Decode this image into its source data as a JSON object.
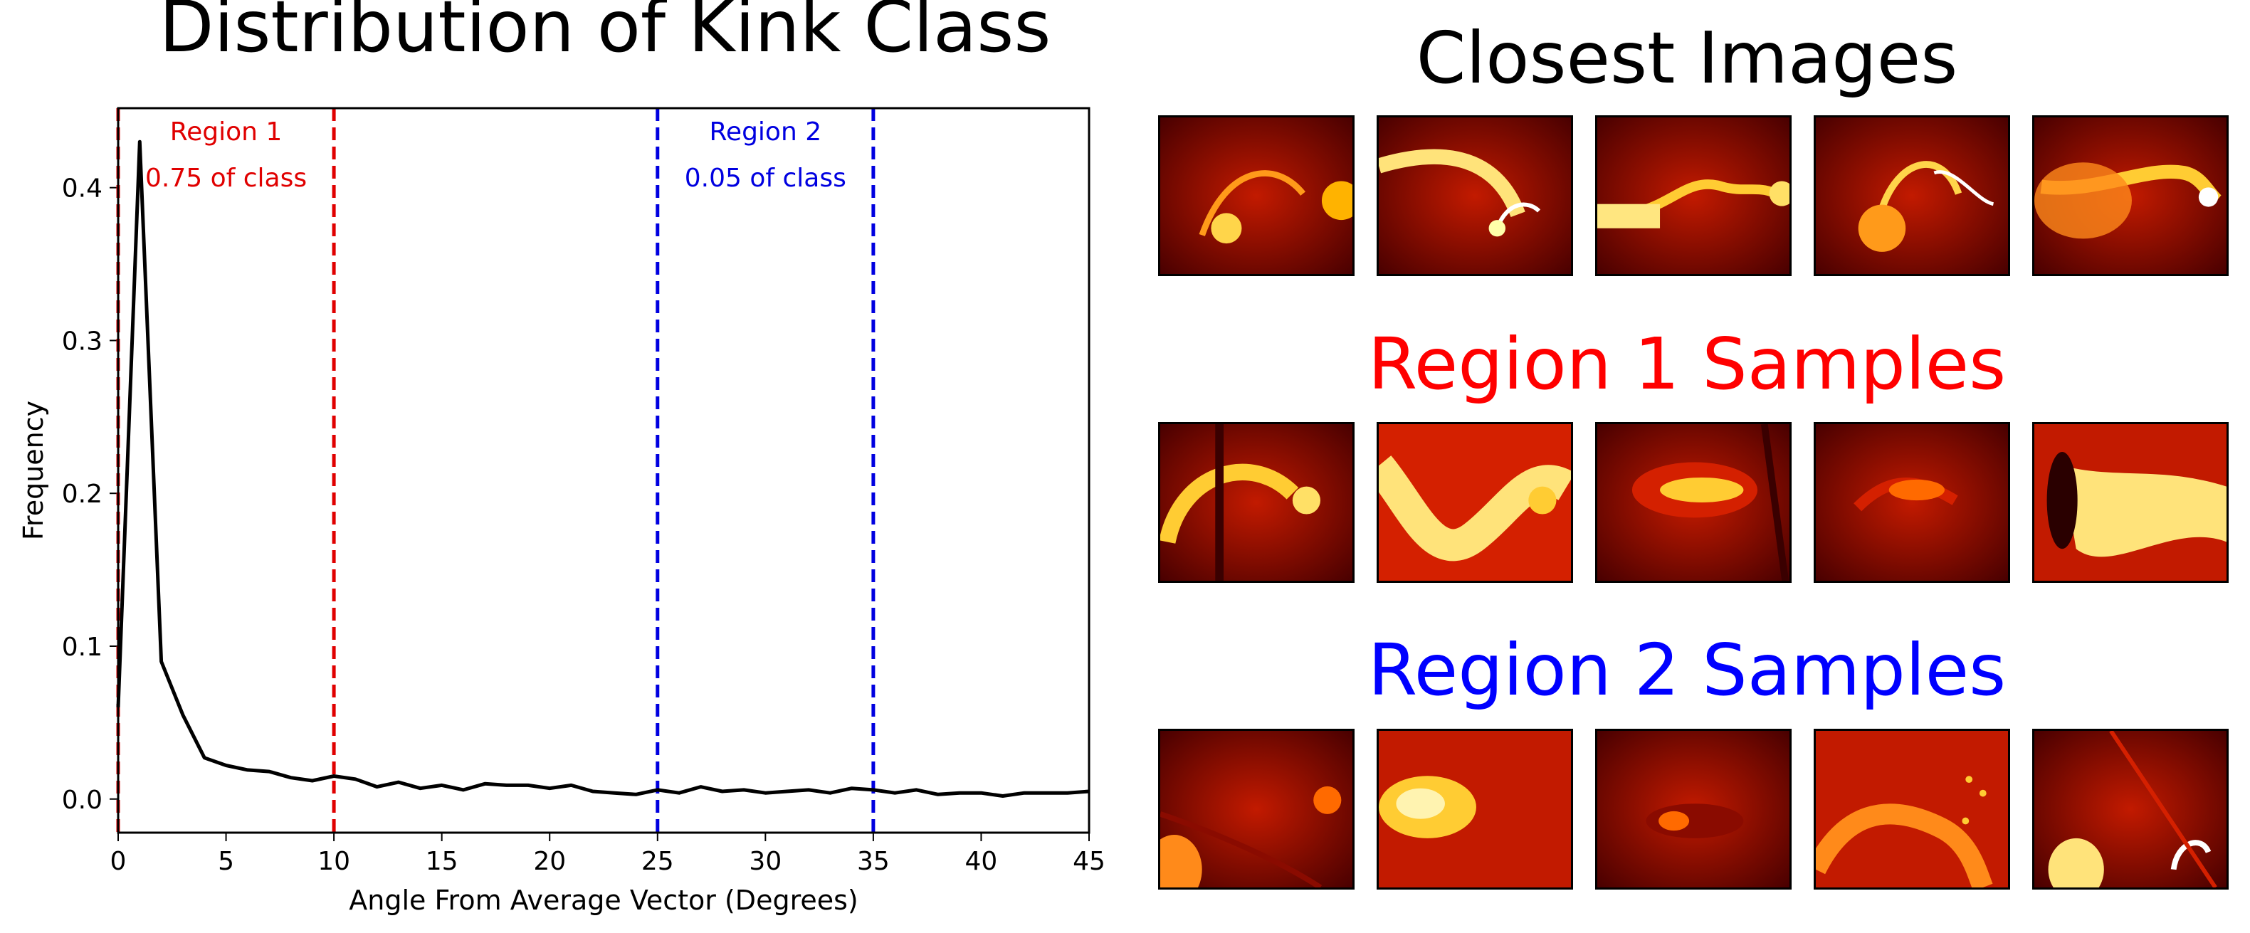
{
  "chart_data": {
    "type": "line",
    "title": "Distribution of Kink Class",
    "xlabel": "Angle From Average Vector (Degrees)",
    "ylabel": "Frequency",
    "xlim": [
      0,
      45
    ],
    "ylim": [
      -0.022,
      0.452
    ],
    "xticks": [
      0,
      5,
      10,
      15,
      20,
      25,
      30,
      35,
      40,
      45
    ],
    "yticks": [
      0.0,
      0.1,
      0.2,
      0.3,
      0.4
    ],
    "line_color": "#000000",
    "x": [
      0,
      1,
      2,
      3,
      4,
      5,
      6,
      7,
      8,
      9,
      10,
      11,
      12,
      13,
      14,
      15,
      16,
      17,
      18,
      19,
      20,
      21,
      22,
      23,
      24,
      25,
      26,
      27,
      28,
      29,
      30,
      31,
      32,
      33,
      34,
      35,
      36,
      37,
      38,
      39,
      40,
      41,
      42,
      43,
      44,
      45
    ],
    "values": [
      0.06,
      0.43,
      0.09,
      0.055,
      0.027,
      0.022,
      0.019,
      0.018,
      0.014,
      0.012,
      0.015,
      0.013,
      0.008,
      0.011,
      0.007,
      0.009,
      0.006,
      0.01,
      0.009,
      0.009,
      0.007,
      0.009,
      0.005,
      0.004,
      0.003,
      0.006,
      0.004,
      0.008,
      0.005,
      0.006,
      0.004,
      0.005,
      0.006,
      0.004,
      0.007,
      0.006,
      0.004,
      0.006,
      0.003,
      0.004,
      0.004,
      0.002,
      0.004,
      0.004,
      0.004,
      0.005
    ],
    "vlines": [
      {
        "x": 0,
        "color": "#e00000",
        "style": "dashed"
      },
      {
        "x": 10,
        "color": "#e00000",
        "style": "dashed"
      },
      {
        "x": 25,
        "color": "#0000e0",
        "style": "dashed"
      },
      {
        "x": 35,
        "color": "#0000e0",
        "style": "dashed"
      }
    ],
    "annotations": [
      {
        "name": "region-1",
        "label": "Region 1",
        "detail": "0.75 of class",
        "x": 5,
        "color": "#e00000"
      },
      {
        "name": "region-2",
        "label": "Region 2",
        "detail": "0.05 of class",
        "x": 30,
        "color": "#0000e0"
      }
    ]
  },
  "gallery": {
    "rows": [
      {
        "title": "Closest Images",
        "color": "#000000",
        "thumbs": [
          "arc-left-to-right",
          "arc-bright-left",
          "arc-horizontal",
          "arc-bright-center",
          "arc-wide-bright"
        ]
      },
      {
        "title": "Region 1 Samples",
        "color": "#ff0000",
        "thumbs": [
          "arc-left-curve",
          "bright-wave",
          "faint-center-plume",
          "dim-center-arc",
          "bright-plume-right"
        ]
      },
      {
        "title": "Region 2 Samples",
        "color": "#0000ff",
        "thumbs": [
          "dark-sparse-sparks",
          "bright-left-cloud",
          "faint-center-glow",
          "diffuse-shell-dots",
          "bright-bottom-loops"
        ]
      }
    ]
  }
}
